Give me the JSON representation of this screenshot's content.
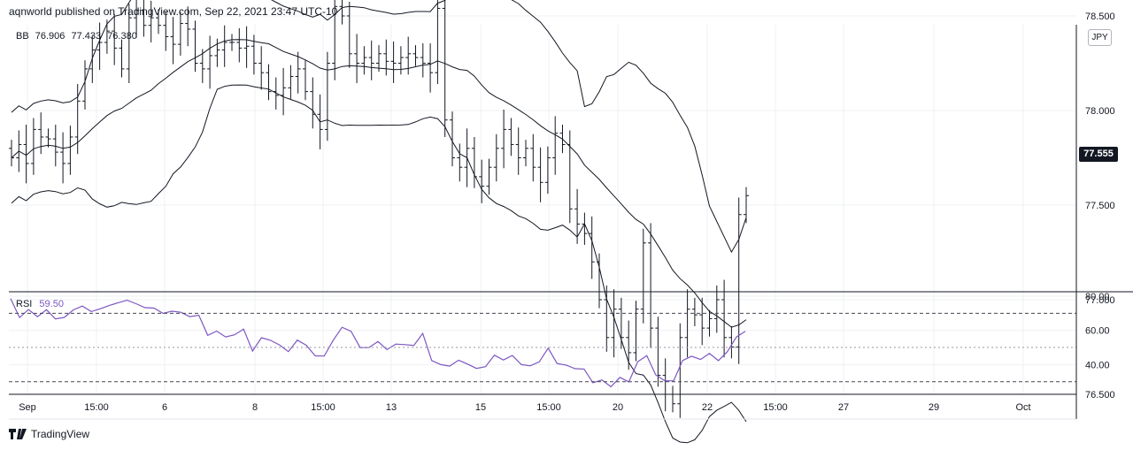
{
  "header": {
    "publisher": "aqnworld published on TradingView.com, Sep 22, 2021 23:47 UTC-10"
  },
  "footer": {
    "brand": "TradingView"
  },
  "price_chart": {
    "currency_button": "JPY",
    "last_price_label": "77.555",
    "legend": {
      "name": "BB",
      "basis": "76.906",
      "upper": "77.433",
      "lower": "76.380"
    }
  },
  "rsi_panel": {
    "legend": {
      "name": "RSI",
      "value": "59.50"
    }
  },
  "colors": {
    "bars": "#131722",
    "bands": "#131722",
    "rsi": "#7e57c2",
    "grid": "#eef0f3"
  },
  "chart_data": [
    {
      "type": "ohlc",
      "title": "",
      "y_ticks": [
        "78.500",
        "78.000",
        "77.500",
        "77.000",
        "76.500"
      ],
      "ylim": [
        76.3,
        78.8
      ],
      "x_ticks": [
        "Sep",
        "15:00",
        "6",
        "8",
        "15:00",
        "13",
        "15",
        "15:00",
        "20",
        "22",
        "15:00",
        "27",
        "29",
        "Oct"
      ],
      "close": [
        77.75,
        77.82,
        77.72,
        77.9,
        77.86,
        77.85,
        77.78,
        77.72,
        77.86,
        78.05,
        78.22,
        78.32,
        78.36,
        78.42,
        78.33,
        78.22,
        78.49,
        78.53,
        78.45,
        78.49,
        78.45,
        78.39,
        78.35,
        78.46,
        78.43,
        78.25,
        78.22,
        78.29,
        78.32,
        78.36,
        78.36,
        78.33,
        78.34,
        78.25,
        78.2,
        78.1,
        78.08,
        78.12,
        78.18,
        78.22,
        78.1,
        77.98,
        77.9,
        78.25,
        78.55,
        78.5,
        78.3,
        78.25,
        78.28,
        78.25,
        78.3,
        78.26,
        78.25,
        78.28,
        78.3,
        78.28,
        78.25,
        78.2,
        78.54,
        77.95,
        77.75,
        77.7,
        77.8,
        77.65,
        77.6,
        77.7,
        77.8,
        77.9,
        77.82,
        77.75,
        77.8,
        77.7,
        77.62,
        77.75,
        77.88,
        77.82,
        77.48,
        77.4,
        77.35,
        77.2,
        77.0,
        76.8,
        76.95,
        76.8,
        76.72,
        76.95,
        77.3,
        76.85,
        76.6,
        76.5,
        76.45,
        76.8,
        76.95,
        76.92,
        76.85,
        76.9,
        77.0,
        76.8,
        76.75,
        77.45,
        77.55
      ]
    },
    {
      "type": "line",
      "title": "",
      "y_ticks": [
        "80.00",
        "60.00",
        "40.00"
      ],
      "reference_lines": [
        70,
        50,
        30
      ],
      "ylim": [
        25,
        82
      ],
      "series": [
        {
          "name": "RSI",
          "values": [
            78.6,
            67.5,
            72.2,
            68.0,
            72.1,
            66.7,
            67.6,
            72.0,
            74.2,
            71.0,
            72.6,
            74.5,
            76.2,
            77.6,
            75.6,
            73.3,
            73.0,
            70.0,
            71.2,
            70.6,
            68.0,
            68.9,
            57.1,
            59.6,
            56.2,
            57.4,
            60.7,
            47.9,
            55.7,
            54.2,
            51.5,
            47.6,
            54.3,
            51.3,
            45.1,
            45.0,
            54.2,
            61.8,
            59.5,
            50.0,
            50.0,
            53.5,
            48.8,
            52.0,
            51.7,
            51.2,
            58.2,
            42.4,
            40.0,
            39.1,
            42.6,
            40.3,
            37.8,
            38.8,
            45.5,
            42.7,
            45.3,
            40.0,
            39.3,
            41.6,
            49.6,
            40.6,
            39.7,
            37.6,
            37.4,
            29.4,
            31.0,
            27.1,
            32.5,
            29.9,
            41.7,
            45.2,
            34.0,
            30.6,
            30.5,
            42.4,
            44.9,
            43.0,
            46.5,
            42.3,
            47.6,
            56.1,
            59.5
          ]
        }
      ]
    }
  ]
}
